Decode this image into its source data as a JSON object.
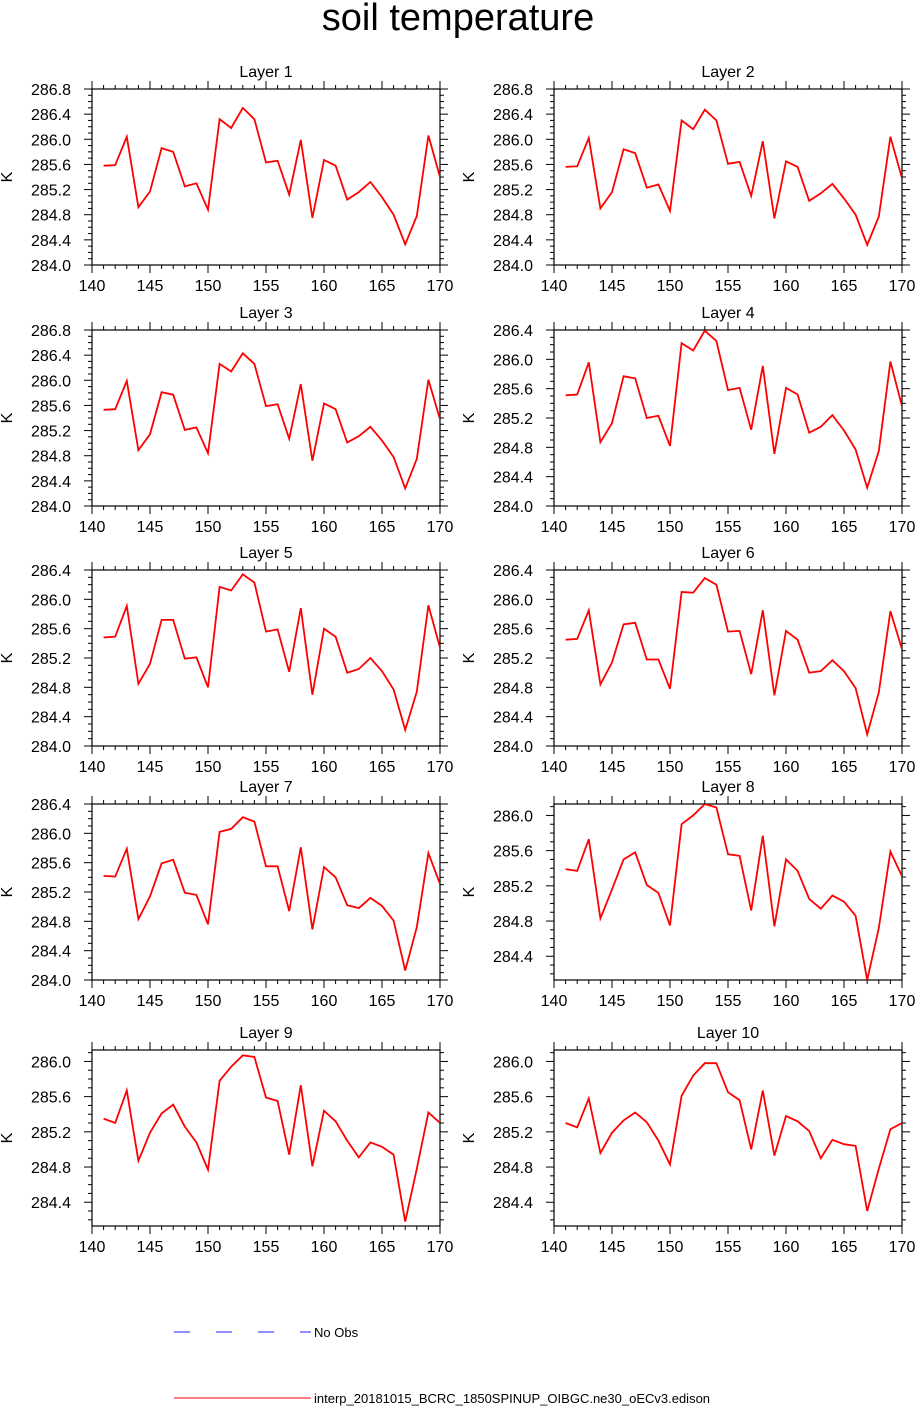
{
  "figure": {
    "title": "soil temperature",
    "legend": [
      {
        "label": "No Obs",
        "color": "#2222ff",
        "dash": "dashed"
      },
      {
        "label": "interp_20181015_BCRC_1850SPINUP_OIBGC.ne30_oECv3.edison",
        "color": "#ff0000",
        "dash": "solid"
      }
    ]
  },
  "chart_data": [
    {
      "type": "line",
      "title": "Layer 1",
      "xlabel": "",
      "ylabel": "K",
      "xlim": [
        140,
        170
      ],
      "ylim": [
        284.0,
        286.8
      ],
      "xticks": [
        140,
        145,
        150,
        155,
        160,
        165,
        170
      ],
      "yticks": [
        284.0,
        284.4,
        284.8,
        285.2,
        285.6,
        286.0,
        286.4,
        286.8
      ],
      "x": [
        141,
        142,
        143,
        144,
        145,
        146,
        147,
        148,
        149,
        150,
        151,
        152,
        153,
        154,
        155,
        156,
        157,
        158,
        159,
        160,
        161,
        162,
        163,
        164,
        165,
        166,
        167,
        168,
        169,
        170
      ],
      "series": [
        {
          "name": "interp_20181015_BCRC_1850SPINUP_OIBGC.ne30_oECv3.edison",
          "color": "#ff0000",
          "values": [
            285.58,
            285.59,
            286.04,
            284.92,
            285.17,
            285.86,
            285.8,
            285.25,
            285.3,
            284.88,
            286.32,
            286.18,
            286.5,
            286.32,
            285.63,
            285.66,
            285.12,
            285.99,
            284.75,
            285.67,
            285.58,
            285.04,
            285.16,
            285.32,
            285.08,
            284.8,
            284.33,
            284.78,
            286.06,
            285.4
          ]
        }
      ]
    },
    {
      "type": "line",
      "title": "Layer 2",
      "xlabel": "",
      "ylabel": "K",
      "xlim": [
        140,
        170
      ],
      "ylim": [
        284.0,
        286.8
      ],
      "xticks": [
        140,
        145,
        150,
        155,
        160,
        165,
        170
      ],
      "yticks": [
        284.0,
        284.4,
        284.8,
        285.2,
        285.6,
        286.0,
        286.4,
        286.8
      ],
      "x": [
        141,
        142,
        143,
        144,
        145,
        146,
        147,
        148,
        149,
        150,
        151,
        152,
        153,
        154,
        155,
        156,
        157,
        158,
        159,
        160,
        161,
        162,
        163,
        164,
        165,
        166,
        167,
        168,
        169,
        170
      ],
      "series": [
        {
          "name": "interp_20181015_BCRC_1850SPINUP_OIBGC.ne30_oECv3.edison",
          "color": "#ff0000",
          "values": [
            285.56,
            285.57,
            286.02,
            284.9,
            285.16,
            285.84,
            285.78,
            285.23,
            285.28,
            284.86,
            286.3,
            286.16,
            286.47,
            286.3,
            285.61,
            285.64,
            285.1,
            285.97,
            284.74,
            285.65,
            285.56,
            285.02,
            285.14,
            285.29,
            285.06,
            284.8,
            284.32,
            284.77,
            286.04,
            285.38
          ]
        }
      ]
    },
    {
      "type": "line",
      "title": "Layer 3",
      "xlabel": "",
      "ylabel": "K",
      "xlim": [
        140,
        170
      ],
      "ylim": [
        284.0,
        286.8
      ],
      "xticks": [
        140,
        145,
        150,
        155,
        160,
        165,
        170
      ],
      "yticks": [
        284.0,
        284.4,
        284.8,
        285.2,
        285.6,
        286.0,
        286.4,
        286.8
      ],
      "x": [
        141,
        142,
        143,
        144,
        145,
        146,
        147,
        148,
        149,
        150,
        151,
        152,
        153,
        154,
        155,
        156,
        157,
        158,
        159,
        160,
        161,
        162,
        163,
        164,
        165,
        166,
        167,
        168,
        169,
        170
      ],
      "series": [
        {
          "name": "interp_20181015_BCRC_1850SPINUP_OIBGC.ne30_oECv3.edison",
          "color": "#ff0000",
          "values": [
            285.53,
            285.54,
            285.99,
            284.89,
            285.14,
            285.81,
            285.77,
            285.21,
            285.25,
            284.84,
            286.26,
            286.14,
            286.43,
            286.26,
            285.59,
            285.62,
            285.07,
            285.94,
            284.72,
            285.63,
            285.54,
            285.01,
            285.11,
            285.26,
            285.04,
            284.78,
            284.28,
            284.75,
            286.01,
            285.38
          ]
        }
      ]
    },
    {
      "type": "line",
      "title": "Layer 4",
      "xlabel": "",
      "ylabel": "K",
      "xlim": [
        140,
        170
      ],
      "ylim": [
        284.0,
        286.4
      ],
      "xticks": [
        140,
        145,
        150,
        155,
        160,
        165,
        170
      ],
      "yticks": [
        284.0,
        284.4,
        284.8,
        285.2,
        285.6,
        286.0,
        286.4
      ],
      "x": [
        141,
        142,
        143,
        144,
        145,
        146,
        147,
        148,
        149,
        150,
        151,
        152,
        153,
        154,
        155,
        156,
        157,
        158,
        159,
        160,
        161,
        162,
        163,
        164,
        165,
        166,
        167,
        168,
        169,
        170
      ],
      "series": [
        {
          "name": "interp_20181015_BCRC_1850SPINUP_OIBGC.ne30_oECv3.edison",
          "color": "#ff0000",
          "values": [
            285.51,
            285.52,
            285.96,
            284.87,
            285.13,
            285.77,
            285.74,
            285.2,
            285.23,
            284.82,
            286.22,
            286.12,
            286.39,
            286.25,
            285.58,
            285.61,
            285.04,
            285.91,
            284.71,
            285.61,
            285.52,
            285.0,
            285.08,
            285.24,
            285.03,
            284.77,
            284.25,
            284.75,
            285.97,
            285.36
          ]
        }
      ]
    },
    {
      "type": "line",
      "title": "Layer 5",
      "xlabel": "",
      "ylabel": "K",
      "xlim": [
        140,
        170
      ],
      "ylim": [
        284.0,
        286.4
      ],
      "xticks": [
        140,
        145,
        150,
        155,
        160,
        165,
        170
      ],
      "yticks": [
        284.0,
        284.4,
        284.8,
        285.2,
        285.6,
        286.0,
        286.4
      ],
      "x": [
        141,
        142,
        143,
        144,
        145,
        146,
        147,
        148,
        149,
        150,
        151,
        152,
        153,
        154,
        155,
        156,
        157,
        158,
        159,
        160,
        161,
        162,
        163,
        164,
        165,
        166,
        167,
        168,
        169,
        170
      ],
      "series": [
        {
          "name": "interp_20181015_BCRC_1850SPINUP_OIBGC.ne30_oECv3.edison",
          "color": "#ff0000",
          "values": [
            285.48,
            285.49,
            285.91,
            284.85,
            285.12,
            285.72,
            285.72,
            285.19,
            285.21,
            284.8,
            286.17,
            286.12,
            286.34,
            286.23,
            285.56,
            285.59,
            285.01,
            285.88,
            284.7,
            285.6,
            285.49,
            285.0,
            285.05,
            285.2,
            285.02,
            284.77,
            284.22,
            284.74,
            285.92,
            285.34
          ]
        }
      ]
    },
    {
      "type": "line",
      "title": "Layer 6",
      "xlabel": "",
      "ylabel": "K",
      "xlim": [
        140,
        170
      ],
      "ylim": [
        284.0,
        286.4
      ],
      "xticks": [
        140,
        145,
        150,
        155,
        160,
        165,
        170
      ],
      "yticks": [
        284.0,
        284.4,
        284.8,
        285.2,
        285.6,
        286.0,
        286.4
      ],
      "x": [
        141,
        142,
        143,
        144,
        145,
        146,
        147,
        148,
        149,
        150,
        151,
        152,
        153,
        154,
        155,
        156,
        157,
        158,
        159,
        160,
        161,
        162,
        163,
        164,
        165,
        166,
        167,
        168,
        169,
        170
      ],
      "series": [
        {
          "name": "interp_20181015_BCRC_1850SPINUP_OIBGC.ne30_oECv3.edison",
          "color": "#ff0000",
          "values": [
            285.45,
            285.46,
            285.85,
            284.84,
            285.14,
            285.66,
            285.68,
            285.18,
            285.18,
            284.78,
            286.1,
            286.09,
            286.29,
            286.2,
            285.56,
            285.57,
            284.98,
            285.85,
            284.69,
            285.57,
            285.45,
            285.0,
            285.02,
            285.17,
            285.02,
            284.79,
            284.16,
            284.73,
            285.84,
            285.32
          ]
        }
      ]
    },
    {
      "type": "line",
      "title": "Layer 7",
      "xlabel": "",
      "ylabel": "K",
      "xlim": [
        140,
        170
      ],
      "ylim": [
        284.0,
        286.4
      ],
      "xticks": [
        140,
        145,
        150,
        155,
        160,
        165,
        170
      ],
      "yticks": [
        284.0,
        284.4,
        284.8,
        285.2,
        285.6,
        286.0,
        286.4
      ],
      "x": [
        141,
        142,
        143,
        144,
        145,
        146,
        147,
        148,
        149,
        150,
        151,
        152,
        153,
        154,
        155,
        156,
        157,
        158,
        159,
        160,
        161,
        162,
        163,
        164,
        165,
        166,
        167,
        168,
        169,
        170
      ],
      "series": [
        {
          "name": "interp_20181015_BCRC_1850SPINUP_OIBGC.ne30_oECv3.edison",
          "color": "#ff0000",
          "values": [
            285.42,
            285.41,
            285.79,
            284.83,
            285.14,
            285.59,
            285.64,
            285.19,
            285.16,
            284.76,
            286.02,
            286.06,
            286.22,
            286.16,
            285.55,
            285.55,
            284.94,
            285.81,
            284.69,
            285.54,
            285.4,
            285.02,
            284.98,
            285.12,
            285.01,
            284.81,
            284.13,
            284.72,
            285.73,
            285.31
          ]
        }
      ]
    },
    {
      "type": "line",
      "title": "Layer 8",
      "xlabel": "",
      "ylabel": "K",
      "xlim": [
        140,
        170
      ],
      "ylim": [
        284.13,
        286.13
      ],
      "xticks": [
        140,
        145,
        150,
        155,
        160,
        165,
        170
      ],
      "yticks": [
        284.4,
        284.8,
        285.2,
        285.6,
        286.0
      ],
      "x": [
        141,
        142,
        143,
        144,
        145,
        146,
        147,
        148,
        149,
        150,
        151,
        152,
        153,
        154,
        155,
        156,
        157,
        158,
        159,
        160,
        161,
        162,
        163,
        164,
        165,
        166,
        167,
        168,
        169,
        170
      ],
      "series": [
        {
          "name": "interp_20181015_BCRC_1850SPINUP_OIBGC.ne30_oECv3.edison",
          "color": "#ff0000",
          "values": [
            285.39,
            285.37,
            285.73,
            284.83,
            285.16,
            285.5,
            285.58,
            285.21,
            285.12,
            284.75,
            285.9,
            286.0,
            286.13,
            286.09,
            285.56,
            285.54,
            284.92,
            285.77,
            284.74,
            285.5,
            285.37,
            285.05,
            284.94,
            285.09,
            285.02,
            284.86,
            284.13,
            284.72,
            285.59,
            285.31
          ]
        }
      ]
    },
    {
      "type": "line",
      "title": "Layer 9",
      "xlabel": "",
      "ylabel": "K",
      "xlim": [
        140,
        170
      ],
      "ylim": [
        284.13,
        286.13
      ],
      "xticks": [
        140,
        145,
        150,
        155,
        160,
        165,
        170
      ],
      "yticks": [
        284.4,
        284.8,
        285.2,
        285.6,
        286.0
      ],
      "x": [
        141,
        142,
        143,
        144,
        145,
        146,
        147,
        148,
        149,
        150,
        151,
        152,
        153,
        154,
        155,
        156,
        157,
        158,
        159,
        160,
        161,
        162,
        163,
        164,
        165,
        166,
        167,
        168,
        169,
        170
      ],
      "series": [
        {
          "name": "interp_20181015_BCRC_1850SPINUP_OIBGC.ne30_oECv3.edison",
          "color": "#ff0000",
          "values": [
            285.35,
            285.3,
            285.67,
            284.87,
            285.19,
            285.41,
            285.51,
            285.26,
            285.08,
            284.77,
            285.78,
            285.94,
            286.07,
            286.05,
            285.59,
            285.55,
            284.94,
            285.73,
            284.81,
            285.44,
            285.32,
            285.1,
            284.91,
            285.08,
            285.03,
            284.94,
            284.18,
            284.78,
            285.42,
            285.3
          ]
        }
      ]
    },
    {
      "type": "line",
      "title": "Layer 10",
      "xlabel": "",
      "ylabel": "K",
      "xlim": [
        140,
        170
      ],
      "ylim": [
        284.13,
        286.13
      ],
      "xticks": [
        140,
        145,
        150,
        155,
        160,
        165,
        170
      ],
      "yticks": [
        284.4,
        284.8,
        285.2,
        285.6,
        286.0
      ],
      "x": [
        141,
        142,
        143,
        144,
        145,
        146,
        147,
        148,
        149,
        150,
        151,
        152,
        153,
        154,
        155,
        156,
        157,
        158,
        159,
        160,
        161,
        162,
        163,
        164,
        165,
        166,
        167,
        168,
        169,
        170
      ],
      "series": [
        {
          "name": "interp_20181015_BCRC_1850SPINUP_OIBGC.ne30_oECv3.edison",
          "color": "#ff0000",
          "values": [
            285.3,
            285.25,
            285.58,
            284.96,
            285.19,
            285.33,
            285.42,
            285.31,
            285.1,
            284.83,
            285.61,
            285.84,
            285.98,
            285.98,
            285.65,
            285.56,
            285.0,
            285.67,
            284.93,
            285.38,
            285.32,
            285.21,
            284.9,
            285.11,
            285.06,
            285.04,
            284.3,
            284.78,
            285.23,
            285.3
          ]
        }
      ]
    }
  ]
}
